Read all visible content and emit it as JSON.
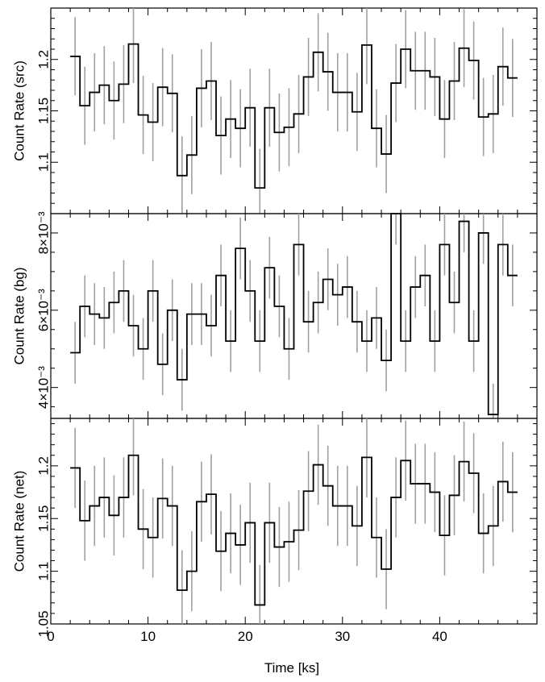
{
  "xlabel": "Time [ks]",
  "colors": {
    "step": "#000000",
    "errorbar": "#a0a0a0",
    "frame": "#000000"
  },
  "chart_data": [
    {
      "type": "line",
      "style": "step-with-errorbars",
      "ylabel": "Count Rate (src)",
      "xlim": [
        0,
        50
      ],
      "ylim": [
        1.05,
        1.25
      ],
      "xticks": [
        "0",
        "10",
        "20",
        "30",
        "40"
      ],
      "yticks": [
        "1.1",
        "1.15",
        "1.2"
      ],
      "x_bin_starts": [
        2,
        3,
        4,
        5,
        6,
        7,
        8,
        9,
        10,
        11,
        12,
        13,
        14,
        15,
        16,
        17,
        18,
        19,
        20,
        21,
        22,
        23,
        24,
        25,
        26,
        27,
        28,
        29,
        30,
        31,
        32,
        33,
        34,
        35,
        36,
        37,
        38,
        39,
        40,
        41,
        42,
        43,
        44,
        45,
        46,
        47,
        48
      ],
      "values": [
        1.203,
        1.155,
        1.168,
        1.175,
        1.16,
        1.176,
        1.215,
        1.146,
        1.139,
        1.173,
        1.167,
        1.087,
        1.107,
        1.172,
        1.179,
        1.126,
        1.142,
        1.133,
        1.153,
        1.075,
        1.153,
        1.129,
        1.134,
        1.147,
        1.183,
        1.207,
        1.188,
        1.168,
        1.168,
        1.149,
        1.214,
        1.133,
        1.108,
        1.177,
        1.21,
        1.189,
        1.189,
        1.183,
        1.142,
        1.179,
        1.211,
        1.199,
        1.144,
        1.147,
        1.193,
        1.182
      ],
      "errors": [
        0.038,
        0.038,
        0.038,
        0.038,
        0.038,
        0.038,
        0.038,
        0.038,
        0.038,
        0.038,
        0.038,
        0.038,
        0.038,
        0.038,
        0.038,
        0.038,
        0.038,
        0.038,
        0.038,
        0.038,
        0.038,
        0.038,
        0.038,
        0.038,
        0.038,
        0.038,
        0.038,
        0.038,
        0.038,
        0.038,
        0.038,
        0.038,
        0.038,
        0.038,
        0.038,
        0.038,
        0.038,
        0.038,
        0.038,
        0.038,
        0.038,
        0.038,
        0.038,
        0.038,
        0.038,
        0.038
      ]
    },
    {
      "type": "line",
      "style": "step-with-errorbars",
      "ylabel": "Count Rate (bg)",
      "xlim": [
        0,
        50
      ],
      "ylim": [
        0.0032,
        0.0085
      ],
      "xticks": [
        "0",
        "10",
        "20",
        "30",
        "40"
      ],
      "yticks": [
        "4×10⁻³",
        "6×10⁻³",
        "8×10⁻³"
      ],
      "values": [
        0.0049,
        0.0061,
        0.0059,
        0.0058,
        0.0062,
        0.0065,
        0.0056,
        0.005,
        0.0065,
        0.0046,
        0.006,
        0.0042,
        0.0059,
        0.0059,
        0.0056,
        0.0069,
        0.0052,
        0.0076,
        0.0065,
        0.0052,
        0.0071,
        0.0061,
        0.005,
        0.0077,
        0.0057,
        0.0062,
        0.0068,
        0.0064,
        0.0066,
        0.0057,
        0.0052,
        0.0058,
        0.0047,
        0.0085,
        0.0052,
        0.0066,
        0.0069,
        0.0052,
        0.0077,
        0.0062,
        0.0083,
        0.0052,
        0.008,
        0.0033,
        0.0077,
        0.0069
      ],
      "errors": [
        0.0008,
        0.0008,
        0.0008,
        0.0008,
        0.0008,
        0.0008,
        0.0008,
        0.0008,
        0.0008,
        0.0008,
        0.0008,
        0.0008,
        0.0008,
        0.0008,
        0.0008,
        0.0008,
        0.0008,
        0.0008,
        0.0008,
        0.0008,
        0.0008,
        0.0008,
        0.0008,
        0.0008,
        0.0008,
        0.0008,
        0.0008,
        0.0008,
        0.0008,
        0.0008,
        0.0008,
        0.0008,
        0.0008,
        0.0008,
        0.0008,
        0.0008,
        0.0008,
        0.0008,
        0.0008,
        0.0008,
        0.0008,
        0.0008,
        0.0008,
        0.0008,
        0.0008,
        0.0008
      ]
    },
    {
      "type": "line",
      "style": "step-with-errorbars",
      "ylabel": "Count Rate (net)",
      "xlim": [
        0,
        50
      ],
      "ylim": [
        1.05,
        1.245
      ],
      "xticks": [
        "0",
        "10",
        "20",
        "30",
        "40"
      ],
      "yticks": [
        "1.05",
        "1.1",
        "1.15",
        "1.2"
      ],
      "values": [
        1.198,
        1.148,
        1.162,
        1.17,
        1.153,
        1.17,
        1.21,
        1.14,
        1.132,
        1.169,
        1.162,
        1.082,
        1.1,
        1.166,
        1.173,
        1.119,
        1.136,
        1.125,
        1.146,
        1.068,
        1.146,
        1.123,
        1.128,
        1.139,
        1.176,
        1.201,
        1.181,
        1.162,
        1.162,
        1.143,
        1.208,
        1.132,
        1.102,
        1.17,
        1.205,
        1.183,
        1.183,
        1.175,
        1.134,
        1.172,
        1.204,
        1.193,
        1.136,
        1.143,
        1.185,
        1.175
      ],
      "errors": [
        0.038,
        0.038,
        0.038,
        0.038,
        0.038,
        0.038,
        0.038,
        0.038,
        0.038,
        0.038,
        0.038,
        0.038,
        0.038,
        0.038,
        0.038,
        0.038,
        0.038,
        0.038,
        0.038,
        0.038,
        0.038,
        0.038,
        0.038,
        0.038,
        0.038,
        0.038,
        0.038,
        0.038,
        0.038,
        0.038,
        0.038,
        0.038,
        0.038,
        0.038,
        0.038,
        0.038,
        0.038,
        0.038,
        0.038,
        0.038,
        0.038,
        0.038,
        0.038,
        0.038,
        0.038,
        0.038
      ]
    }
  ]
}
